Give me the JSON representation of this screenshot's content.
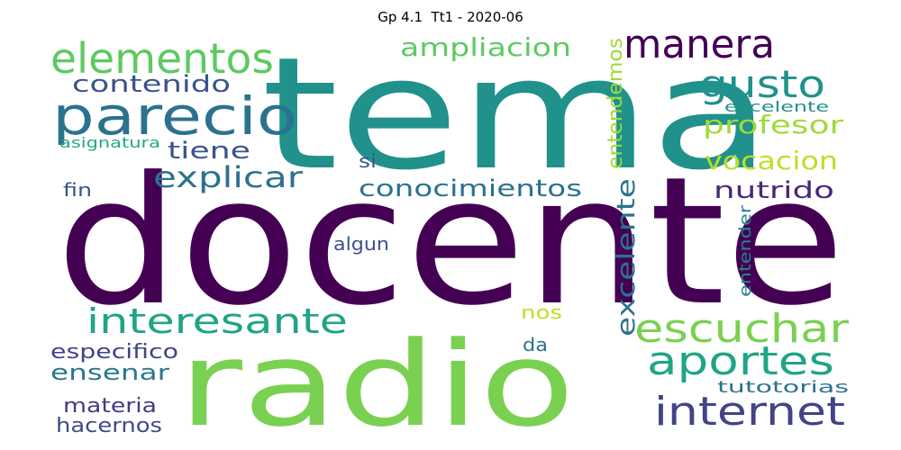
{
  "title": "Gp 4.1  Tt1 - 2020-06",
  "words": [
    {
      "text": "docente",
      "color": "#440154"
    },
    {
      "text": "tema",
      "color": "#21918c"
    },
    {
      "text": "radio",
      "color": "#7ad151"
    },
    {
      "text": "parecio",
      "color": "#2c728e"
    },
    {
      "text": "elementos",
      "color": "#5ec962"
    },
    {
      "text": "manera",
      "color": "#440154"
    },
    {
      "text": "gusto",
      "color": "#21918c"
    },
    {
      "text": "ampliacion",
      "color": "#5ec962"
    },
    {
      "text": "contenido",
      "color": "#3b528b"
    },
    {
      "text": "tiene",
      "color": "#3b528b"
    },
    {
      "text": "explicar",
      "color": "#2c728e"
    },
    {
      "text": "conocimientos",
      "color": "#2c728e"
    },
    {
      "text": "profesor",
      "color": "#a0da39"
    },
    {
      "text": "vocacion",
      "color": "#bddf26"
    },
    {
      "text": "nutrido",
      "color": "#482878"
    },
    {
      "text": "interesante",
      "color": "#20a486"
    },
    {
      "text": "escuchar",
      "color": "#7ad151"
    },
    {
      "text": "aportes",
      "color": "#20a486"
    },
    {
      "text": "internet",
      "color": "#414487"
    },
    {
      "text": "excelente",
      "color": "#2c728e"
    },
    {
      "text": "entendemos",
      "color": "#a0da39"
    },
    {
      "text": "entender",
      "color": "#26828e"
    },
    {
      "text": "eccelente",
      "color": "#21918c"
    },
    {
      "text": "asignatura",
      "color": "#22a884"
    },
    {
      "text": "fin",
      "color": "#3b528b"
    },
    {
      "text": "si",
      "color": "#3b528b"
    },
    {
      "text": "algun",
      "color": "#3b528b"
    },
    {
      "text": "especifico",
      "color": "#414487"
    },
    {
      "text": "ensenar",
      "color": "#2a788e"
    },
    {
      "text": "materia",
      "color": "#443983"
    },
    {
      "text": "hacernos",
      "color": "#3e4a89"
    },
    {
      "text": "nos",
      "color": "#bddf26"
    },
    {
      "text": "da",
      "color": "#2c728e"
    },
    {
      "text": "tutotorias",
      "color": "#2c728e"
    }
  ]
}
